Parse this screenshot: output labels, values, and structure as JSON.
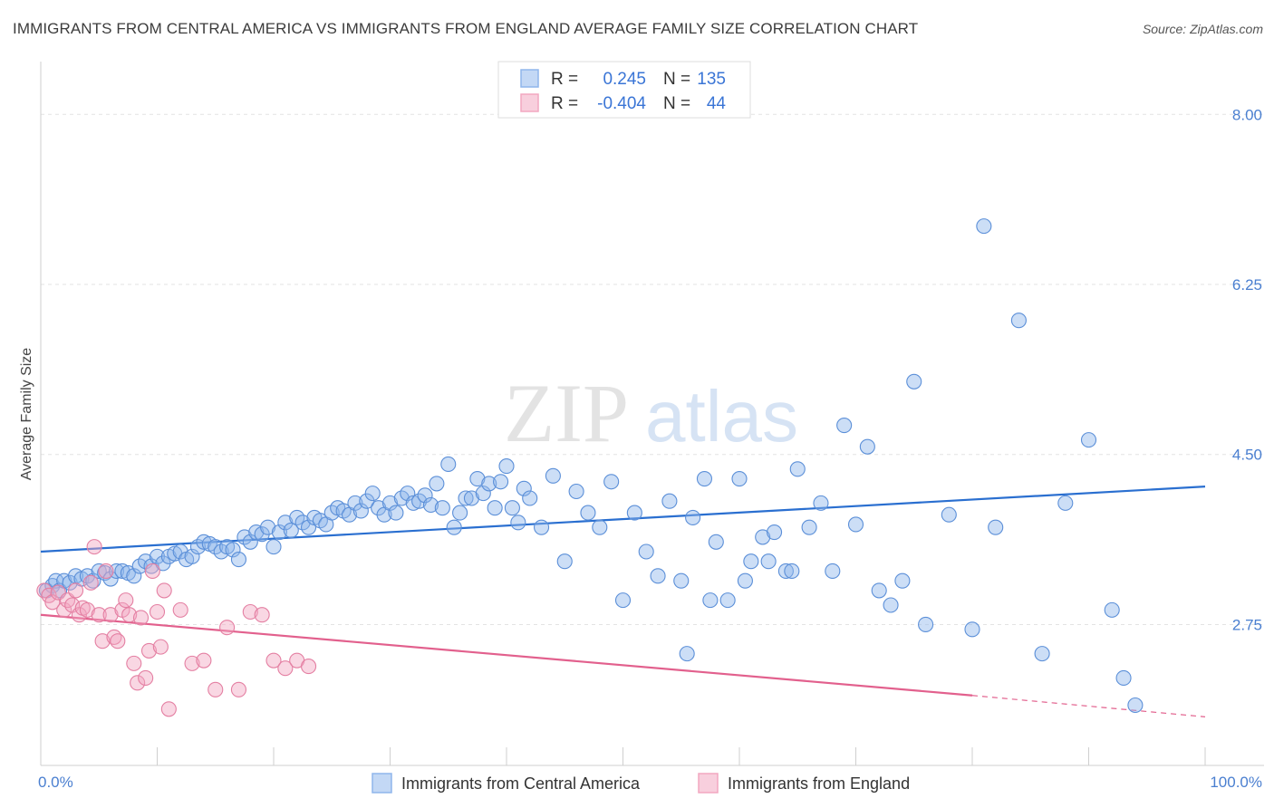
{
  "header": {
    "title": "IMMIGRANTS FROM CENTRAL AMERICA VS IMMIGRANTS FROM ENGLAND AVERAGE FAMILY SIZE CORRELATION CHART",
    "source": "Source: ZipAtlas.com"
  },
  "watermark": {
    "zip": "ZIP",
    "atlas": "atlas"
  },
  "legend": {
    "rows": [
      {
        "r_label": "R =",
        "r_value": "0.245",
        "n_label": "N =",
        "n_value": "135",
        "color": "#8fb6ec"
      },
      {
        "r_label": "R =",
        "r_value": "-0.404",
        "n_label": "N =",
        "n_value": "44",
        "color": "#f2a7c0"
      }
    ]
  },
  "chart_data": {
    "type": "scatter",
    "title": "IMMIGRANTS FROM CENTRAL AMERICA VS IMMIGRANTS FROM ENGLAND AVERAGE FAMILY SIZE CORRELATION CHART",
    "xlabel": "",
    "ylabel": "Average Family Size",
    "xlim": [
      0,
      100
    ],
    "ylim": [
      1.3,
      8.45
    ],
    "x_tick_labels": [
      "0.0%",
      "100.0%"
    ],
    "y_ticks": [
      2.75,
      4.5,
      6.25,
      8.0
    ],
    "y_tick_labels": [
      "2.75",
      "4.50",
      "6.25",
      "8.00"
    ],
    "grid": true,
    "legend_position": "top-center",
    "series": [
      {
        "name": "Immigrants from Central America",
        "color": "#8fb6ec",
        "stroke": "#5b8fd8",
        "trend": {
          "x": [
            0,
            100
          ],
          "y": [
            3.5,
            4.17
          ]
        },
        "points": [
          [
            0.5,
            3.1
          ],
          [
            1.0,
            3.15
          ],
          [
            1.3,
            3.2
          ],
          [
            1.6,
            3.1
          ],
          [
            2.0,
            3.2
          ],
          [
            2.5,
            3.18
          ],
          [
            3.0,
            3.25
          ],
          [
            3.5,
            3.22
          ],
          [
            4.0,
            3.25
          ],
          [
            4.5,
            3.2
          ],
          [
            5.0,
            3.3
          ],
          [
            5.5,
            3.28
          ],
          [
            6.0,
            3.22
          ],
          [
            6.5,
            3.3
          ],
          [
            7.0,
            3.3
          ],
          [
            7.5,
            3.28
          ],
          [
            8.0,
            3.25
          ],
          [
            8.5,
            3.35
          ],
          [
            9.0,
            3.4
          ],
          [
            9.5,
            3.35
          ],
          [
            10.0,
            3.45
          ],
          [
            10.5,
            3.38
          ],
          [
            11.0,
            3.45
          ],
          [
            11.5,
            3.48
          ],
          [
            12.0,
            3.5
          ],
          [
            12.5,
            3.42
          ],
          [
            13.0,
            3.45
          ],
          [
            13.5,
            3.55
          ],
          [
            14.0,
            3.6
          ],
          [
            14.5,
            3.58
          ],
          [
            15.0,
            3.55
          ],
          [
            15.5,
            3.5
          ],
          [
            16.0,
            3.55
          ],
          [
            16.5,
            3.52
          ],
          [
            17.0,
            3.42
          ],
          [
            17.5,
            3.65
          ],
          [
            18.0,
            3.6
          ],
          [
            18.5,
            3.7
          ],
          [
            19.0,
            3.68
          ],
          [
            19.5,
            3.75
          ],
          [
            20.0,
            3.55
          ],
          [
            20.5,
            3.7
          ],
          [
            21.0,
            3.8
          ],
          [
            21.5,
            3.72
          ],
          [
            22.0,
            3.85
          ],
          [
            22.5,
            3.8
          ],
          [
            23.0,
            3.75
          ],
          [
            23.5,
            3.85
          ],
          [
            24.0,
            3.82
          ],
          [
            24.5,
            3.78
          ],
          [
            25.0,
            3.9
          ],
          [
            25.5,
            3.95
          ],
          [
            26.0,
            3.92
          ],
          [
            26.5,
            3.88
          ],
          [
            27.0,
            4.0
          ],
          [
            27.5,
            3.92
          ],
          [
            28.0,
            4.02
          ],
          [
            28.5,
            4.1
          ],
          [
            29.0,
            3.95
          ],
          [
            29.5,
            3.88
          ],
          [
            30.0,
            4.0
          ],
          [
            30.5,
            3.9
          ],
          [
            31.0,
            4.05
          ],
          [
            31.5,
            4.1
          ],
          [
            32.0,
            4.0
          ],
          [
            32.5,
            4.02
          ],
          [
            33.0,
            4.08
          ],
          [
            33.5,
            3.98
          ],
          [
            34.0,
            4.2
          ],
          [
            34.5,
            3.95
          ],
          [
            35.0,
            4.4
          ],
          [
            35.5,
            3.75
          ],
          [
            36.0,
            3.9
          ],
          [
            36.5,
            4.05
          ],
          [
            37.0,
            4.05
          ],
          [
            37.5,
            4.25
          ],
          [
            38.0,
            4.1
          ],
          [
            38.5,
            4.2
          ],
          [
            39.0,
            3.95
          ],
          [
            39.5,
            4.22
          ],
          [
            40.0,
            4.38
          ],
          [
            40.5,
            3.95
          ],
          [
            41.0,
            3.8
          ],
          [
            41.5,
            4.15
          ],
          [
            42.0,
            4.05
          ],
          [
            43.0,
            3.75
          ],
          [
            44.0,
            4.28
          ],
          [
            45.0,
            3.4
          ],
          [
            46.0,
            4.12
          ],
          [
            47.0,
            3.9
          ],
          [
            48.0,
            3.75
          ],
          [
            49.0,
            4.22
          ],
          [
            50.0,
            3.0
          ],
          [
            51.0,
            3.9
          ],
          [
            52.0,
            3.5
          ],
          [
            53.0,
            3.25
          ],
          [
            54.0,
            4.02
          ],
          [
            55.0,
            3.2
          ],
          [
            56.0,
            3.85
          ],
          [
            57.0,
            4.25
          ],
          [
            58.0,
            3.6
          ],
          [
            59.0,
            3.0
          ],
          [
            60.0,
            4.25
          ],
          [
            61.0,
            3.4
          ],
          [
            62.0,
            3.65
          ],
          [
            63.0,
            3.7
          ],
          [
            64.0,
            3.3
          ],
          [
            65.0,
            4.35
          ],
          [
            66.0,
            3.75
          ],
          [
            67.0,
            4.0
          ],
          [
            68.0,
            3.3
          ],
          [
            69.0,
            4.8
          ],
          [
            70.0,
            3.78
          ],
          [
            71.0,
            4.58
          ],
          [
            72.0,
            3.1
          ],
          [
            73.0,
            2.95
          ],
          [
            74.0,
            3.2
          ],
          [
            75.0,
            5.25
          ],
          [
            76.0,
            2.75
          ],
          [
            78.0,
            3.88
          ],
          [
            80.0,
            2.7
          ],
          [
            81.0,
            6.85
          ],
          [
            82.0,
            3.75
          ],
          [
            84.0,
            5.88
          ],
          [
            86.0,
            2.45
          ],
          [
            88.0,
            4.0
          ],
          [
            90.0,
            4.65
          ],
          [
            92.0,
            2.9
          ],
          [
            93.0,
            2.2
          ],
          [
            94.0,
            1.92
          ],
          [
            55.5,
            2.45
          ],
          [
            57.5,
            3.0
          ],
          [
            60.5,
            3.2
          ],
          [
            62.5,
            3.4
          ],
          [
            64.5,
            3.3
          ]
        ]
      },
      {
        "name": "Immigrants from England",
        "color": "#f2a7c0",
        "stroke": "#e47fa2",
        "trend": {
          "x": [
            0,
            80
          ],
          "y": [
            2.85,
            2.02
          ]
        },
        "trend_ext": {
          "x": [
            80,
            100
          ],
          "y": [
            2.02,
            1.8
          ]
        },
        "points": [
          [
            0.3,
            3.1
          ],
          [
            0.7,
            3.05
          ],
          [
            1.0,
            2.98
          ],
          [
            1.5,
            3.08
          ],
          [
            2.0,
            2.9
          ],
          [
            2.3,
            3.0
          ],
          [
            2.7,
            2.95
          ],
          [
            3.0,
            3.1
          ],
          [
            3.3,
            2.85
          ],
          [
            3.6,
            2.92
          ],
          [
            4.0,
            2.9
          ],
          [
            4.3,
            3.18
          ],
          [
            4.6,
            3.55
          ],
          [
            5.0,
            2.85
          ],
          [
            5.3,
            2.58
          ],
          [
            5.6,
            3.3
          ],
          [
            6.0,
            2.85
          ],
          [
            6.3,
            2.62
          ],
          [
            6.6,
            2.58
          ],
          [
            7.0,
            2.9
          ],
          [
            7.3,
            3.0
          ],
          [
            7.6,
            2.85
          ],
          [
            8.0,
            2.35
          ],
          [
            8.3,
            2.15
          ],
          [
            8.6,
            2.82
          ],
          [
            9.0,
            2.2
          ],
          [
            9.3,
            2.48
          ],
          [
            9.6,
            3.3
          ],
          [
            10.0,
            2.88
          ],
          [
            10.3,
            2.52
          ],
          [
            10.6,
            3.1
          ],
          [
            11.0,
            1.88
          ],
          [
            12.0,
            2.9
          ],
          [
            13.0,
            2.35
          ],
          [
            14.0,
            2.38
          ],
          [
            15.0,
            2.08
          ],
          [
            16.0,
            2.72
          ],
          [
            17.0,
            2.08
          ],
          [
            18.0,
            2.88
          ],
          [
            19.0,
            2.85
          ],
          [
            20.0,
            2.38
          ],
          [
            21.0,
            2.3
          ],
          [
            22.0,
            2.38
          ],
          [
            23.0,
            2.32
          ]
        ]
      }
    ]
  },
  "bottom_legend": [
    {
      "label": "Immigrants from Central America",
      "color": "#8fb6ec"
    },
    {
      "label": "Immigrants from England",
      "color": "#f2a7c0"
    }
  ]
}
